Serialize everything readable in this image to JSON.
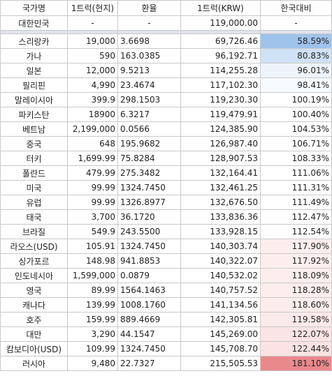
{
  "headers": [
    "국가명",
    "1트럭(현지)",
    "환율",
    "1트럭(KRW)",
    "한국대비"
  ],
  "korea": {
    "country": "대한민국",
    "local": "-",
    "rate": "-",
    "krw": "119,000.00",
    "vs": "-"
  },
  "rows": [
    {
      "country": "스리랑카",
      "local": "19,000",
      "rate": "3.6698",
      "krw": "69,726.46",
      "vs": "58.59%",
      "bg": "#9fc3ea"
    },
    {
      "country": "가나",
      "local": "590",
      "rate": "163.0385",
      "krw": "96,192.71",
      "vs": "80.83%",
      "bg": "#cfe1f4"
    },
    {
      "country": "일본",
      "local": "12,000",
      "rate": "9.5213",
      "krw": "114,255.28",
      "vs": "96.01%",
      "bg": "#eef4fb"
    },
    {
      "country": "필리핀",
      "local": "4,990",
      "rate": "23.4674",
      "krw": "117,102.30",
      "vs": "98.41%",
      "bg": "#f7fafd"
    },
    {
      "country": "말레이시아",
      "local": "399.9",
      "rate": "298.1503",
      "krw": "119,230.30",
      "vs": "100.19%",
      "bg": "#ffffff"
    },
    {
      "country": "파키스탄",
      "local": "18900",
      "rate": "6.3217",
      "krw": "119,479.91",
      "vs": "100.40%",
      "bg": "#ffffff"
    },
    {
      "country": "베트남",
      "local": "2,199,000",
      "rate": "0.0566",
      "krw": "124,385.90",
      "vs": "104.53%",
      "bg": "#ffffff"
    },
    {
      "country": "중국",
      "local": "648",
      "rate": "195.9682",
      "krw": "126,987.40",
      "vs": "106.71%",
      "bg": "#ffffff"
    },
    {
      "country": "터키",
      "local": "1,699.99",
      "rate": "75.8284",
      "krw": "128,907.53",
      "vs": "108.33%",
      "bg": "#ffffff"
    },
    {
      "country": "폴란드",
      "local": "479.99",
      "rate": "275.3482",
      "krw": "132,164.41",
      "vs": "111.06%",
      "bg": "#ffffff"
    },
    {
      "country": "미국",
      "local": "99.99",
      "rate": "1324.7450",
      "krw": "132,461.25",
      "vs": "111.31%",
      "bg": "#ffffff"
    },
    {
      "country": "유럽",
      "local": "99.99",
      "rate": "1326.8977",
      "krw": "132,676.50",
      "vs": "111.49%",
      "bg": "#ffffff"
    },
    {
      "country": "태국",
      "local": "3,700",
      "rate": "36.1720",
      "krw": "133,836.36",
      "vs": "112.47%",
      "bg": "#ffffff"
    },
    {
      "country": "브라질",
      "local": "549.9",
      "rate": "243.5500",
      "krw": "133,928.15",
      "vs": "112.54%",
      "bg": "#ffffff"
    },
    {
      "country": "라오스(USD)",
      "local": "105.91",
      "rate": "1324.7450",
      "krw": "140,303.74",
      "vs": "117.90%",
      "bg": "#fdeeee"
    },
    {
      "country": "싱가포르",
      "local": "148.98",
      "rate": "941.8853",
      "krw": "140,322.07",
      "vs": "117.92%",
      "bg": "#fdeeee"
    },
    {
      "country": "인도네시아",
      "local": "1,599,000",
      "rate": "0.0879",
      "krw": "140,532.02",
      "vs": "118.09%",
      "bg": "#fdeeee"
    },
    {
      "country": "영국",
      "local": "89.99",
      "rate": "1564.1463",
      "krw": "140,757.52",
      "vs": "118.28%",
      "bg": "#fdeded"
    },
    {
      "country": "캐나다",
      "local": "139.99",
      "rate": "1008.1760",
      "krw": "141,134.56",
      "vs": "118.60%",
      "bg": "#fdecec"
    },
    {
      "country": "호주",
      "local": "159.99",
      "rate": "889.4669",
      "krw": "142,305.81",
      "vs": "119.58%",
      "bg": "#fceaea"
    },
    {
      "country": "대만",
      "local": "3,290",
      "rate": "44.1547",
      "krw": "145,269.00",
      "vs": "122.07%",
      "bg": "#fbe4e4"
    },
    {
      "country": "캄보디아(USD)",
      "local": "109.99",
      "rate": "1324.7450",
      "krw": "145,708.70",
      "vs": "122.44%",
      "bg": "#fbe3e3"
    },
    {
      "country": "러시아",
      "local": "9,480",
      "rate": "22.7327",
      "krw": "215,505.53",
      "vs": "181.10%",
      "bg": "#e9898c"
    }
  ]
}
